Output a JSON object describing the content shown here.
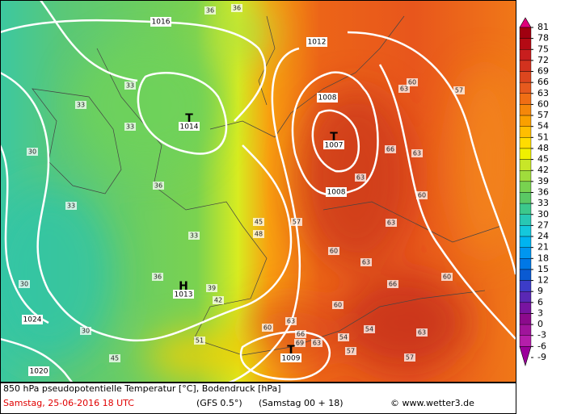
{
  "footer": {
    "description": "850 hPa pseudopotentielle Temperatur [°C], Bodendruck [hPa]",
    "date": "Samstag, 25-06-2016  18 UTC",
    "model": "(GFS 0.5°)",
    "run": "(Samstag 00 + 18)",
    "credit": "© www.wetter3.de"
  },
  "colorbar": {
    "ticks": [
      81,
      78,
      75,
      72,
      69,
      66,
      63,
      60,
      57,
      54,
      51,
      48,
      45,
      42,
      39,
      36,
      33,
      30,
      27,
      24,
      21,
      18,
      15,
      12,
      9,
      6,
      3,
      0,
      -3,
      -6,
      -9
    ],
    "colors": [
      "#e0007a",
      "#a00010",
      "#b40a14",
      "#c81e1e",
      "#d2321e",
      "#dc461e",
      "#e65a1e",
      "#f06e14",
      "#f5870a",
      "#faa000",
      "#ffbe00",
      "#ffdc00",
      "#f0f000",
      "#c8e628",
      "#a0dc3c",
      "#78d250",
      "#5ac864",
      "#3cc88c",
      "#28c8b4",
      "#14c8dc",
      "#00b4f0",
      "#0096f0",
      "#0078e6",
      "#0a5ad2",
      "#3c3cc8",
      "#5a28b4",
      "#7814a0",
      "#8c0a8c",
      "#a0149b",
      "#b41eaa",
      "#9b009b"
    ]
  },
  "pressure_centers": [
    {
      "symbol": "T",
      "value": "1014"
    },
    {
      "symbol": "T",
      "value": "1007"
    },
    {
      "symbol": "H",
      "value": "1013"
    },
    {
      "symbol": "T",
      "value": "1009"
    }
  ],
  "isobar_labels": [
    "1016",
    "1012",
    "1008",
    "1008",
    "1024",
    "1020"
  ],
  "contour_labels": [
    "36",
    "36",
    "33",
    "33",
    "33",
    "30",
    "30",
    "36",
    "33",
    "33",
    "30",
    "36",
    "39",
    "42",
    "45",
    "51",
    "57",
    "60",
    "63",
    "66",
    "63",
    "60",
    "57",
    "63",
    "60",
    "63",
    "66",
    "63",
    "60",
    "54",
    "60",
    "63",
    "66",
    "69",
    "63",
    "57",
    "54",
    "60",
    "63",
    "57",
    "45",
    "48"
  ]
}
